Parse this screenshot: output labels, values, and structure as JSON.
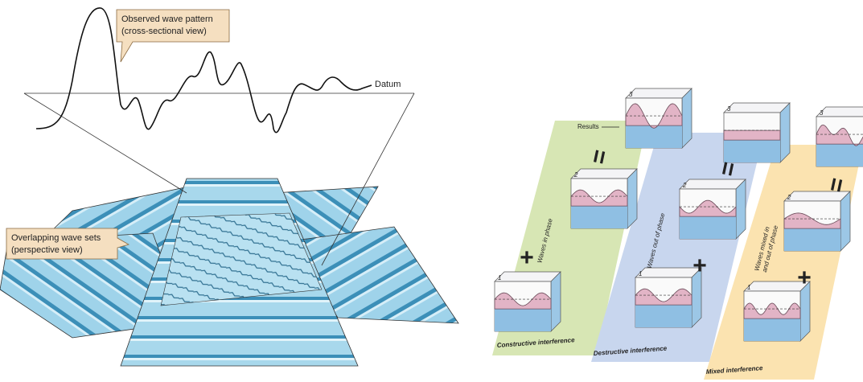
{
  "left": {
    "observed_callout": {
      "line1": "Observed wave pattern",
      "line2": "(cross-sectional view)"
    },
    "datum": "Datum",
    "overlap_callout": {
      "line1": "Overlapping wave sets",
      "line2": "(perspective view)"
    }
  },
  "right": {
    "results_label": "Results",
    "panels": [
      {
        "side_label": [
          "Waves in phase"
        ],
        "footer": "Constructive interference",
        "box_labels": [
          "1",
          "2",
          "3"
        ],
        "plus": "+",
        "equals": "="
      },
      {
        "side_label": [
          "Waves out of phase"
        ],
        "footer": "Destructive interference",
        "box_labels": [
          "1",
          "2",
          "3"
        ],
        "plus": "+",
        "equals": "="
      },
      {
        "side_label": [
          "Waves mixed in",
          "and out of phase"
        ],
        "footer": "Mixed interference",
        "box_labels": [
          "1",
          "2",
          "3"
        ],
        "plus": "+",
        "equals": "="
      }
    ]
  }
}
